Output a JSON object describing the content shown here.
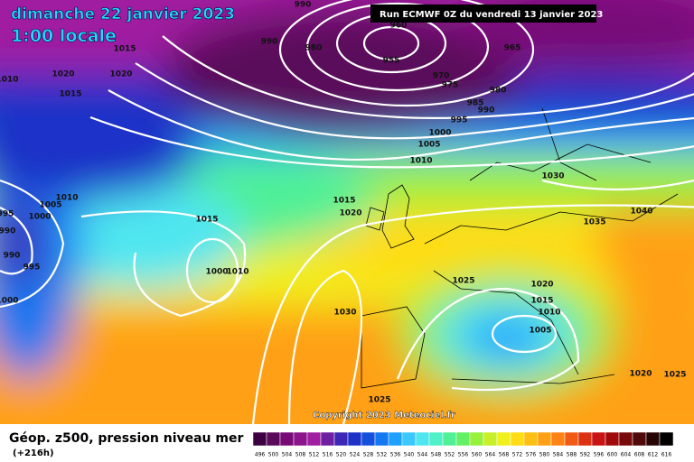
{
  "header": {
    "title": "dimanche 22 janvier 2023",
    "time": "1:00 locale",
    "run": "Run ECMWF 0Z du vendredi 13 janvier 2023"
  },
  "copyright": "Copyright 2023 Meteociel.fr",
  "footer": {
    "title": "Géop. z500, pression niveau mer",
    "lead": "(+216h)"
  },
  "colorbar": {
    "labels": [
      496,
      500,
      504,
      508,
      512,
      516,
      520,
      524,
      528,
      532,
      536,
      540,
      544,
      548,
      552,
      556,
      560,
      564,
      568,
      572,
      576,
      580,
      584,
      588,
      592,
      596,
      600,
      604,
      608,
      612,
      616
    ],
    "colors": [
      "#3c0040",
      "#5a0a5a",
      "#780a78",
      "#8c148c",
      "#a01ea0",
      "#6e1ea0",
      "#3c28b4",
      "#1e32c8",
      "#1450dc",
      "#1478f0",
      "#1ea0ff",
      "#3cc8ff",
      "#50e6f0",
      "#50f0c8",
      "#50f096",
      "#64f064",
      "#96f03c",
      "#c8f028",
      "#f0f01e",
      "#ffdc14",
      "#ffbe14",
      "#ffa014",
      "#ff8214",
      "#f05a14",
      "#dc3214",
      "#c81414",
      "#a00a0a",
      "#780a0a",
      "#500a0a",
      "#280505",
      "#000000"
    ]
  },
  "isobars": [
    "990",
    "990",
    "980",
    "960",
    "955",
    "965",
    "970",
    "975",
    "980",
    "985",
    "990",
    "995",
    "1000",
    "1005",
    "1010",
    "1015",
    "1020",
    "1020",
    "1015",
    "1010",
    "1010",
    "1005",
    "1000",
    "995",
    "990",
    "990",
    "995",
    "1000",
    "1015",
    "1000",
    "1010",
    "1015",
    "1020",
    "1030",
    "1025",
    "1030",
    "1035",
    "1040",
    "1025",
    "1020",
    "1015",
    "1010",
    "1005",
    "1020",
    "1025"
  ]
}
